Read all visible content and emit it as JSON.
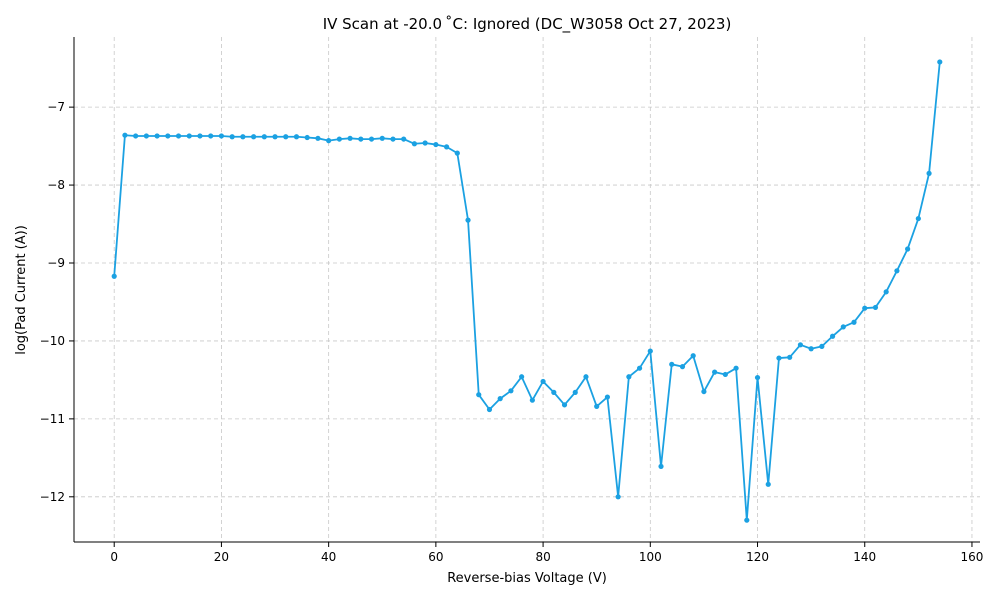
{
  "chart_data": {
    "type": "line",
    "title": "IV Scan at -20.0 ˚C: Ignored (DC_W3058 Oct 27, 2023)",
    "xlabel": "Reverse-bias Voltage (V)",
    "ylabel": "log(Pad Current (A))",
    "xlim": [
      -7.5,
      161.5
    ],
    "ylim": [
      -12.58,
      -6.1
    ],
    "xticks": [
      0,
      20,
      40,
      60,
      80,
      100,
      120,
      140,
      160
    ],
    "yticks": [
      -12,
      -11,
      -10,
      -9,
      -8,
      -7
    ],
    "grid": true,
    "colors": {
      "series": "#1ba1e2"
    },
    "series": [
      {
        "x": [
          0,
          2,
          4,
          6,
          8,
          10,
          12,
          14,
          16,
          18,
          20,
          22,
          24,
          26,
          28,
          30,
          32,
          34,
          36,
          38,
          40,
          42,
          44,
          46,
          48,
          50,
          52,
          54,
          56,
          58,
          60,
          62,
          64,
          66,
          68,
          70,
          72,
          74,
          76,
          78,
          80,
          82,
          84,
          86,
          88,
          90,
          92,
          94,
          96,
          98,
          100,
          102,
          104,
          106,
          108,
          110,
          112,
          114,
          116,
          118,
          120,
          122,
          124,
          126,
          128,
          130,
          132,
          134,
          136,
          138,
          140,
          142,
          144,
          146,
          148,
          150,
          152,
          154
        ],
        "y": [
          -9.17,
          -7.36,
          -7.37,
          -7.37,
          -7.37,
          -7.37,
          -7.37,
          -7.37,
          -7.37,
          -7.37,
          -7.37,
          -7.38,
          -7.38,
          -7.38,
          -7.38,
          -7.38,
          -7.38,
          -7.38,
          -7.39,
          -7.4,
          -7.43,
          -7.41,
          -7.4,
          -7.41,
          -7.41,
          -7.4,
          -7.41,
          -7.41,
          -7.47,
          -7.46,
          -7.48,
          -7.51,
          -7.59,
          -8.45,
          -10.69,
          -10.88,
          -10.74,
          -10.64,
          -10.46,
          -10.76,
          -10.52,
          -10.66,
          -10.82,
          -10.66,
          -10.46,
          -10.84,
          -10.72,
          -12.0,
          -10.46,
          -10.35,
          -10.13,
          -11.61,
          -10.3,
          -10.33,
          -10.19,
          -10.65,
          -10.4,
          -10.43,
          -10.35,
          -12.3,
          -10.47,
          -11.84,
          -10.22,
          -10.21,
          -10.05,
          -10.1,
          -10.07,
          -9.94,
          -9.82,
          -9.76,
          -9.58,
          -9.57,
          -9.37,
          -9.1,
          -8.82,
          -8.43,
          -7.85,
          -6.42
        ]
      }
    ]
  }
}
